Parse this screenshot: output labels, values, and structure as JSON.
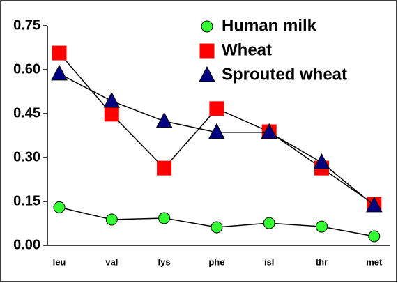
{
  "chart_data": {
    "type": "line",
    "categories": [
      "leu",
      "val",
      "lys",
      "phe",
      "isl",
      "thr",
      "met"
    ],
    "series": [
      {
        "name": "Human milk",
        "color": "#33ff33",
        "marker": "circle",
        "values": [
          0.13,
          0.088,
          0.093,
          0.062,
          0.076,
          0.064,
          0.031
        ]
      },
      {
        "name": "Wheat",
        "color": "#ff0000",
        "marker": "square",
        "values": [
          0.657,
          0.448,
          0.264,
          0.467,
          0.388,
          0.264,
          0.14
        ]
      },
      {
        "name": "Sprouted wheat",
        "color": "#000080",
        "marker": "triangle",
        "values": [
          0.586,
          0.493,
          0.424,
          0.386,
          0.386,
          0.283,
          0.136
        ]
      }
    ],
    "ylim": [
      0,
      0.75
    ],
    "yticks": [
      {
        "value": 0,
        "label": "0.00"
      },
      {
        "value": 0.15,
        "label": "0.15"
      },
      {
        "value": 0.3,
        "label": "0.30"
      },
      {
        "value": 0.45,
        "label": "0.45"
      },
      {
        "value": 0.6,
        "label": "0.60"
      },
      {
        "value": 0.75,
        "label": "0.75"
      }
    ],
    "legend": "top-right"
  }
}
